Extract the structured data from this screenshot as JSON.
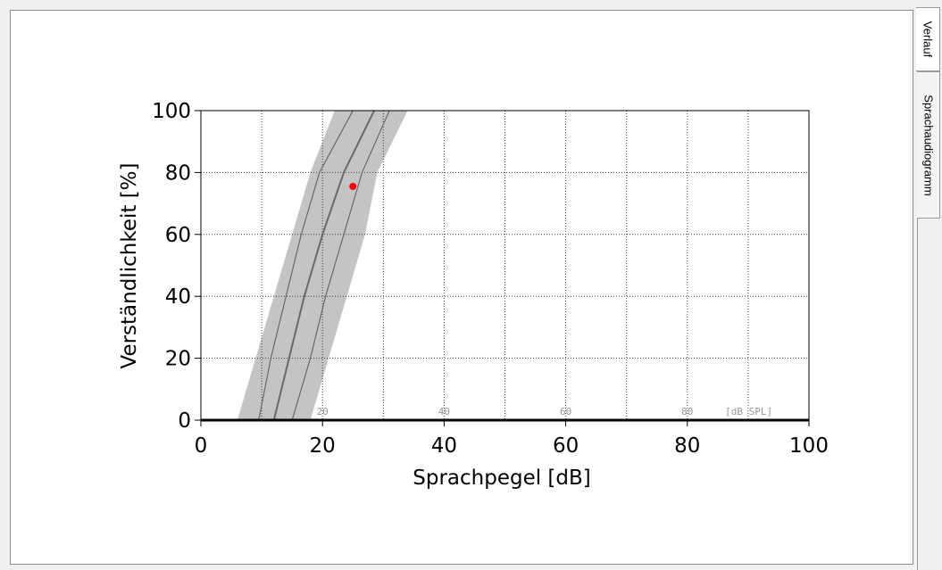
{
  "tabs": [
    {
      "label": "Verlauf",
      "active": true
    },
    {
      "label": "Sprachaudiogramm",
      "active": false
    }
  ],
  "chart_data": {
    "type": "line",
    "xlabel": "Sprachpegel [dB]",
    "ylabel": "Verständlichkeit [%]",
    "xlim": [
      0,
      100
    ],
    "ylim": [
      0,
      100
    ],
    "x_ticks": [
      "0",
      "20",
      "40",
      "60",
      "80",
      "100"
    ],
    "y_ticks": [
      "0",
      "20",
      "40",
      "60",
      "80",
      "100"
    ],
    "grid": true,
    "secondary_axis": {
      "unit_label": "[dB SPL]",
      "ticks": [
        {
          "label": "20",
          "x": 20
        },
        {
          "label": "40",
          "x": 40
        },
        {
          "label": "60",
          "x": 60
        },
        {
          "label": "80",
          "x": 80
        }
      ]
    },
    "normal_band": {
      "lower": [
        [
          6,
          0
        ],
        [
          9,
          20
        ],
        [
          12,
          40
        ],
        [
          15,
          60
        ],
        [
          18,
          80
        ],
        [
          22,
          100
        ]
      ],
      "upper": [
        [
          18,
          0
        ],
        [
          21,
          20
        ],
        [
          24,
          40
        ],
        [
          27,
          60
        ],
        [
          29,
          80
        ],
        [
          34,
          100
        ]
      ]
    },
    "series": [
      {
        "values": [
          [
            9.5,
            0
          ],
          [
            11.5,
            20
          ],
          [
            14,
            40
          ],
          [
            16.5,
            60
          ],
          [
            19.5,
            80
          ],
          [
            25,
            100
          ]
        ]
      },
      {
        "values": [
          [
            12,
            0
          ],
          [
            14.5,
            20
          ],
          [
            17,
            40
          ],
          [
            20,
            60
          ],
          [
            23.5,
            80
          ],
          [
            28.5,
            100
          ]
        ]
      },
      {
        "values": [
          [
            15,
            0
          ],
          [
            18,
            20
          ],
          [
            20.5,
            40
          ],
          [
            23.5,
            60
          ],
          [
            26.5,
            80
          ],
          [
            31,
            100
          ]
        ]
      }
    ],
    "points": [
      {
        "x": 25,
        "y": 75.5
      }
    ],
    "colors": {
      "band": "#c4c4c4",
      "line": "#6a6a6a",
      "point": "#ff0000",
      "grid": "#404040"
    }
  }
}
